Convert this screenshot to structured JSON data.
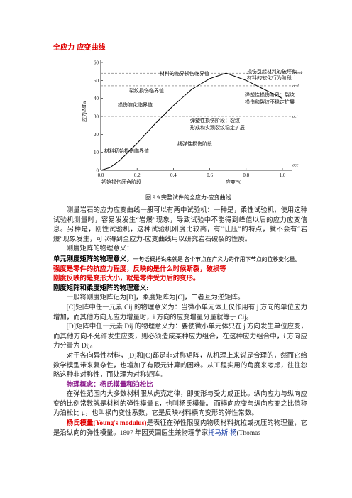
{
  "title": "全应力-应变曲线",
  "figure": {
    "type": "line",
    "ylabel": "应力/MPa",
    "xlabel": "应变/%",
    "xlim": [
      0,
      1
    ],
    "ylim": [
      0,
      60
    ],
    "xticks": [
      {
        "value": 0,
        "label": "0.0"
      },
      0.2,
      0.4,
      0.6,
      0.8,
      {
        "value": 1,
        "label": "1.0"
      }
    ],
    "yticks": [
      0,
      10,
      20,
      30,
      40,
      50,
      60
    ],
    "x": [
      0,
      0.05,
      0.1,
      0.2,
      0.3,
      0.4,
      0.5,
      0.6,
      0.69,
      0.8,
      0.9,
      1.0
    ],
    "values": [
      0,
      1.5,
      5,
      15,
      26,
      36,
      45,
      51,
      54,
      50,
      45,
      40
    ],
    "color": "#000000",
    "levels": [
      {
        "name": "σpeak",
        "value": 54
      },
      {
        "name": "σcd",
        "value": 47
      },
      {
        "name": "σci",
        "value": 30
      },
      {
        "name": "σcc",
        "value": 3
      }
    ],
    "annotations": [
      [
        "材料的临界损伤临界值"
      ],
      [
        "损伤引起材料的破坏和",
        "材料的软化行为阶段"
      ],
      [
        "裂纹损伤临界值"
      ],
      [
        "弹塑性损伤阶段：裂纹",
        "损伤和裂纹不稳定扩展"
      ],
      [
        "损伤演化临界值"
      ],
      [
        "弹塑性损伤阶段：裂纹",
        "形成和实观裂纹稳定扩展"
      ],
      [
        "线弹性损伤阶段"
      ],
      [
        "材料初始损伤临界值"
      ],
      [
        "初始损伤闭合阶段"
      ]
    ],
    "caption": "图 9.9   完整试件的全应力-应变曲线"
  },
  "paragraphs": [
    "测量岩石的应力应变曲线一般可以有两中试验机：一种是，柔性试验机，使用这种试验机测量时，容易发发生“岩爆”现象，导致试验中不能得到峰值以后的应力应变信息。另种是，刚性试验机，这种试验机刚度比较高，有“让压”的特点，就不会有“岩爆”现象发生，可以得到全应力-应变曲线用以研究岩石破裂的性质。",
    "刚度矩阵的物理意义：",
    [
      "单元刚度矩阵的物理意义，",
      "一句话概括说来就是 各个节点在广义力的作用下节点的位移变化量。"
    ],
    "强度是零件的抗应力程度，反映的是什么时候断裂，破损等",
    "刚度反映的是变形大小，就是零件受力后的变形。",
    "刚度矩阵和柔度矩阵的物理意义:",
    "一般将刚度矩阵记为[D]，柔度矩阵为[C]，二者互为逆矩阵。",
    "[C]矩阵中任一元素 Cij 的物理意义为：当微小单元体上仅作用有 j 方向的单位应力增加，而其他方向无应力增量时，i 方向的应变增量分量就等于 Cij。",
    "[D]矩阵中任一元素 Dij 的物理意义为：要使微小单元体只在 j 方向发生单位应变，而其他方向不允许发生应变，则必须造成某种应力组合，在这种应力组合中，i 方向应力分量为 Dij。",
    "对于各向异性材料，[D]和[C]都是非对称矩阵，从机理上来说是合理的，然而它给数学模型带来复杂性，也增加了有限元计算的困难。从工程实用的角度来考虑，往往忽略这种非对称性，而处理为对称矩阵。",
    "物理概念：杨氏模量和泊松比",
    "在弹性范围内大多数材料服从虎克定律，即变形与受力成正比。纵向应力与纵向应变的比例常数就是材料的弹性模量 E，也叫杨氏模量。 而横向应变与纵向应变之比值称为泊松比 μ，也叫横向变性系数，它是反映材料横向变形的弹性常数。",
    [
      "杨氏模量(Young's modulus)",
      "是表征在弹性限度内物质材料抗拉或抗压的物理量，它是沿纵向的弹性模量。1807 年因英国医生兼物理学家",
      "托马斯·杨",
      "(Thomas"
    ]
  ]
}
